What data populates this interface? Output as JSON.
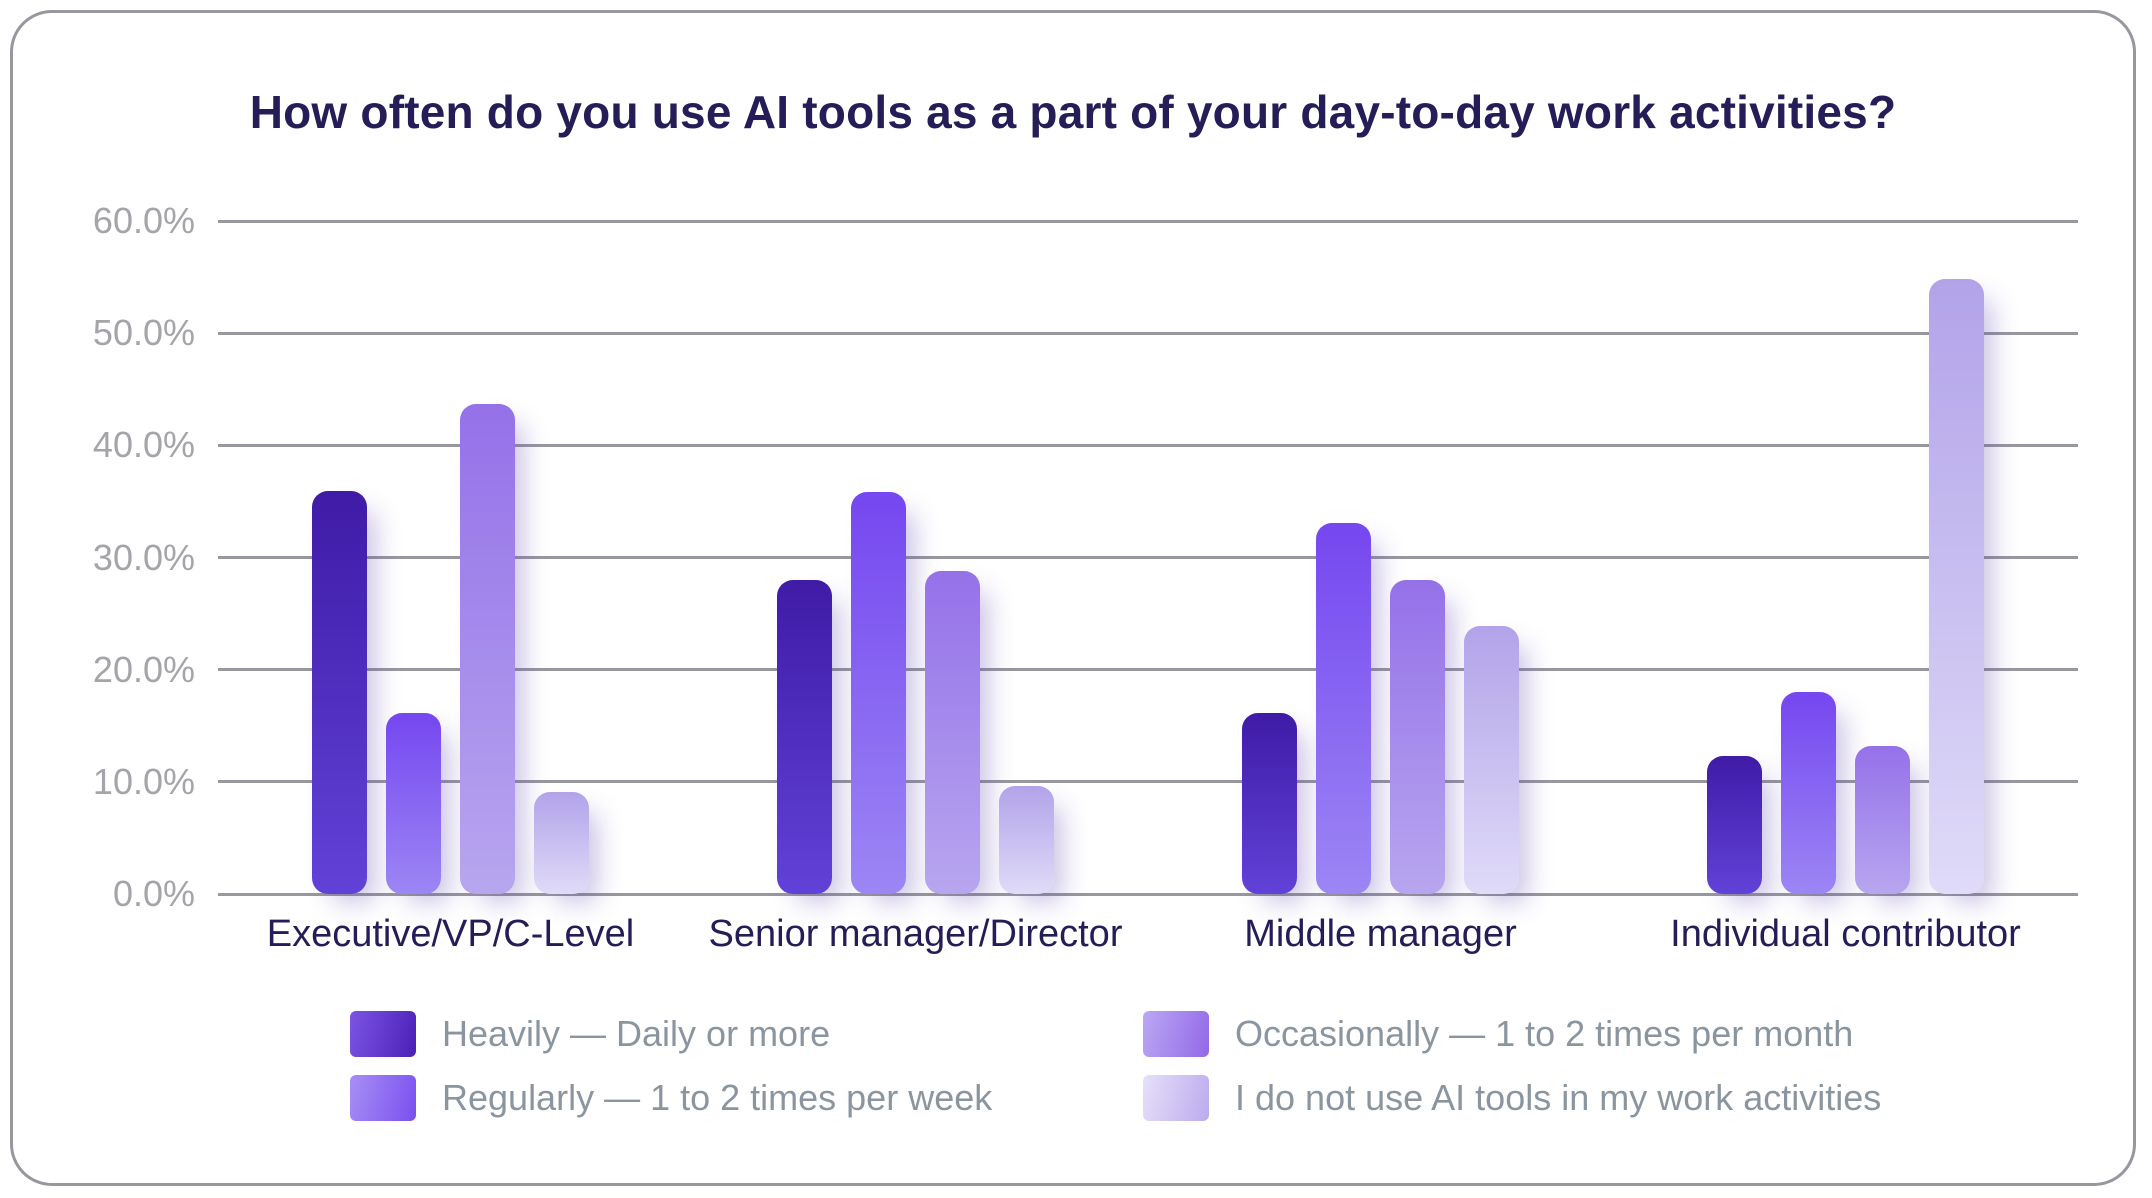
{
  "chart_data": {
    "type": "bar",
    "title": "How often do you use AI tools as a part of your day-to-day work activities?",
    "categories": [
      "Executive/VP/C-Level",
      "Senior manager/Director",
      "Middle manager",
      "Individual contributor"
    ],
    "series": [
      {
        "name": "Heavily — Daily or more",
        "values": [
          35.9,
          28.0,
          16.1,
          12.3
        ],
        "bar_gradient": [
          "#3f1ba6",
          "#6142d8"
        ],
        "swatch_gradient": [
          "#7c55e3",
          "#4a1fb8"
        ]
      },
      {
        "name": "Regularly — 1 to 2 times per week",
        "values": [
          16.1,
          35.8,
          33.1,
          18.0
        ],
        "bar_gradient": [
          "#7547f0",
          "#9c86f4"
        ],
        "swatch_gradient": [
          "#a78ff4",
          "#7a4ff0"
        ]
      },
      {
        "name": "Occasionally — 1 to 2 times per month",
        "values": [
          43.7,
          28.8,
          28.0,
          13.2
        ],
        "bar_gradient": [
          "#9571e9",
          "#b7a6ef"
        ],
        "swatch_gradient": [
          "#bba8f3",
          "#9268e8"
        ]
      },
      {
        "name": "I do not use AI tools in my work activities",
        "values": [
          9.1,
          9.6,
          23.9,
          54.8
        ],
        "bar_gradient": [
          "#b2a3e9",
          "#e0dbf8"
        ],
        "swatch_gradient": [
          "#e6e0f9",
          "#bcaaee"
        ]
      }
    ],
    "y_axis": {
      "tick_labels": [
        "60.0%",
        "50.0%",
        "40.0%",
        "30.0%",
        "20.0%",
        "10.0%",
        "0.0%"
      ],
      "min": 0,
      "max": 60,
      "step": 10
    },
    "legend_position": "bottom",
    "grid": "horizontal"
  },
  "colors": {
    "card_border": "#97979d",
    "gridline": "#98989e",
    "title_text": "#251d57",
    "category_text": "#251d57",
    "tick_text": "#a4a4ab",
    "legend_text": "#8b95a0",
    "background": "#ffffff"
  }
}
